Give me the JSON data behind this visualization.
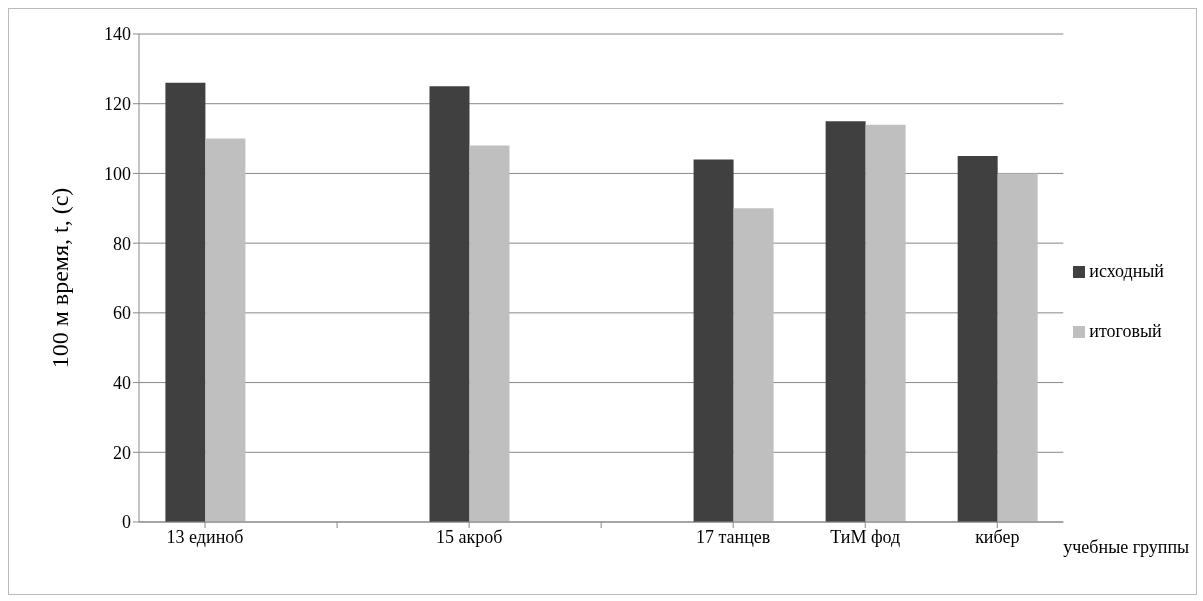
{
  "chart_data": {
    "type": "bar",
    "categories": [
      "13 единоб",
      null,
      "15 акроб",
      null,
      "17 танцев",
      "ТиМ фод",
      "кибер"
    ],
    "series": [
      {
        "name": "исходный",
        "color": "#404040",
        "values": [
          126,
          null,
          125,
          null,
          104,
          115,
          105
        ]
      },
      {
        "name": "итоговый",
        "color": "#bfbfbf",
        "values": [
          110,
          null,
          108,
          null,
          90,
          114,
          100
        ]
      }
    ],
    "xlabel": "учебные группы",
    "ylabel": "100 м время, t, (с)",
    "ylim": [
      0,
      140
    ],
    "yticks": [
      0,
      20,
      40,
      60,
      80,
      100,
      120,
      140
    ],
    "grid": "y",
    "legend": "right"
  }
}
